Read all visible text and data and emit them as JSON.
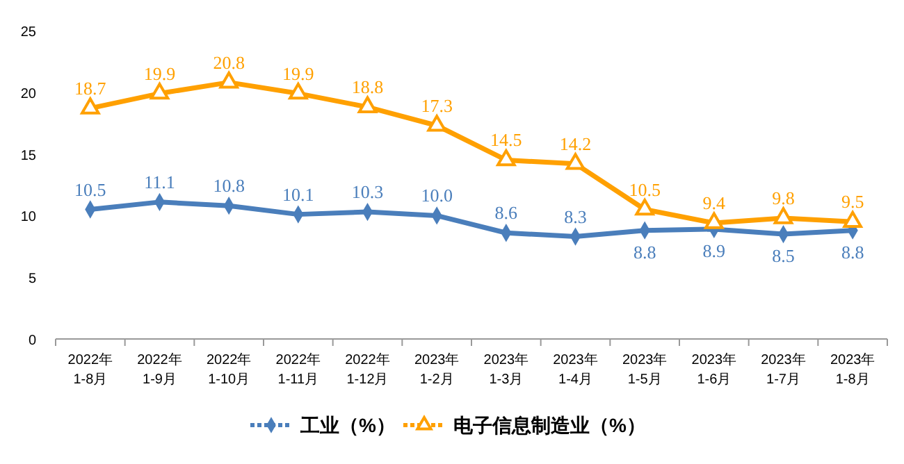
{
  "chart_data": {
    "type": "line",
    "categories": [
      "2022年\n1-8月",
      "2022年\n1-9月",
      "2022年\n1-10月",
      "2022年\n1-11月",
      "2022年\n1-12月",
      "2023年\n1-2月",
      "2023年\n1-3月",
      "2023年\n1-4月",
      "2023年\n1-5月",
      "2023年\n1-6月",
      "2023年\n1-7月",
      "2023年\n1-8月"
    ],
    "series": [
      {
        "name": "工业（%）",
        "color": "#4a7ebb",
        "marker": "diamond",
        "values": [
          10.5,
          11.1,
          10.8,
          10.1,
          10.3,
          10.0,
          8.6,
          8.3,
          8.8,
          8.9,
          8.5,
          8.8
        ],
        "value_labels": [
          "10.5",
          "11.1",
          "10.8",
          "10.1",
          "10.3",
          "10.0",
          "8.6",
          "8.3",
          "8.8",
          "8.9",
          "8.5",
          "8.8"
        ]
      },
      {
        "name": "电子信息制造业（%）",
        "color": "#ffa000",
        "marker": "triangle",
        "values": [
          18.7,
          19.9,
          20.8,
          19.9,
          18.8,
          17.3,
          14.5,
          14.2,
          10.5,
          9.4,
          9.8,
          9.5
        ],
        "value_labels": [
          "18.7",
          "19.9",
          "20.8",
          "19.9",
          "18.8",
          "17.3",
          "14.5",
          "14.2",
          "10.5",
          "9.4",
          "9.8",
          "9.5"
        ]
      }
    ],
    "ylim": [
      0,
      25
    ],
    "yticks": [
      0,
      5,
      10,
      15,
      20,
      25
    ],
    "legend": "bottom",
    "grid": false
  }
}
